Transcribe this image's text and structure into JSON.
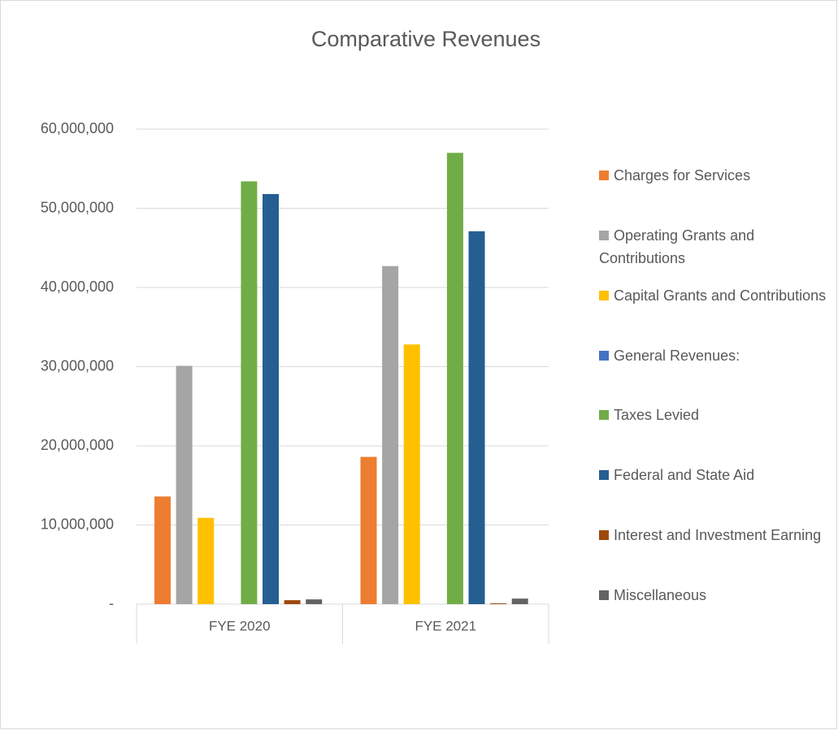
{
  "chart_data": {
    "type": "bar",
    "title": "Comparative Revenues",
    "categories": [
      "FYE 2020",
      "FYE 2021"
    ],
    "series": [
      {
        "name": "Charges for Services",
        "color": "#ED7D31",
        "values": [
          13600000,
          18600000
        ]
      },
      {
        "name": "Operating Grants and Contributions",
        "color": "#A5A5A5",
        "values": [
          30100000,
          42700000
        ]
      },
      {
        "name": "Capital Grants and Contributions",
        "color": "#FFC000",
        "values": [
          10900000,
          32800000
        ]
      },
      {
        "name": "General Revenues:",
        "color": "#4472C4",
        "values": [
          null,
          null
        ]
      },
      {
        "name": "Taxes Levied",
        "color": "#70AD47",
        "values": [
          53400000,
          57000000
        ]
      },
      {
        "name": "Federal and State Aid",
        "color": "#255E91",
        "values": [
          51800000,
          47100000
        ]
      },
      {
        "name": "Interest and Investment Earning",
        "color": "#9E480E",
        "values": [
          500000,
          100000
        ]
      },
      {
        "name": "Miscellaneous",
        "color": "#636363",
        "values": [
          600000,
          700000
        ]
      }
    ],
    "ylim": [
      0,
      60000000
    ],
    "yticks": [
      {
        "value": 0,
        "label": "-"
      },
      {
        "value": 10000000,
        "label": "10,000,000"
      },
      {
        "value": 20000000,
        "label": "20,000,000"
      },
      {
        "value": 30000000,
        "label": "30,000,000"
      },
      {
        "value": 40000000,
        "label": "40,000,000"
      },
      {
        "value": 50000000,
        "label": "50,000,000"
      },
      {
        "value": 60000000,
        "label": "60,000,000"
      }
    ],
    "grid": true
  }
}
